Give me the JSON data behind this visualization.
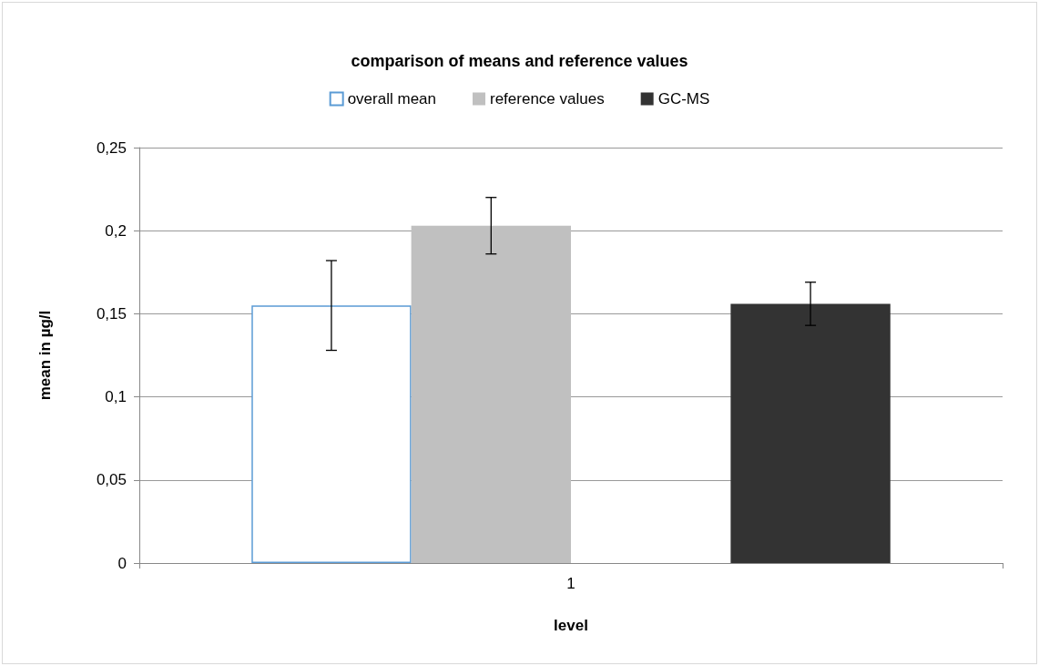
{
  "chart_data": {
    "type": "bar",
    "title": "comparison of means and reference values",
    "xlabel": "level",
    "ylabel": "mean in µg/l",
    "categories": [
      "1"
    ],
    "series": [
      {
        "name": "overall mean",
        "color": "#ffffff",
        "values": [
          0.155
        ],
        "errors": [
          0.027
        ]
      },
      {
        "name": "reference values",
        "color": "#c0c0c0",
        "values": [
          0.203
        ],
        "errors": [
          0.017
        ]
      },
      {
        "color": "#404040",
        "values": [
          0
        ]
      },
      {
        "name": "GC-MS",
        "color": "#333333",
        "values": [
          0.156
        ],
        "errors": [
          0.013
        ]
      }
    ],
    "ylim": [
      0,
      0.25
    ],
    "yticks": [
      {
        "value": 0,
        "label": "0"
      },
      {
        "value": 0.05,
        "label": "0,05"
      },
      {
        "value": 0.1,
        "label": "0,1"
      },
      {
        "value": 0.15,
        "label": "0,15"
      },
      {
        "value": 0.2,
        "label": "0,2"
      },
      {
        "value": 0.25,
        "label": "0,25"
      }
    ],
    "grid": "y",
    "legend": "top"
  }
}
